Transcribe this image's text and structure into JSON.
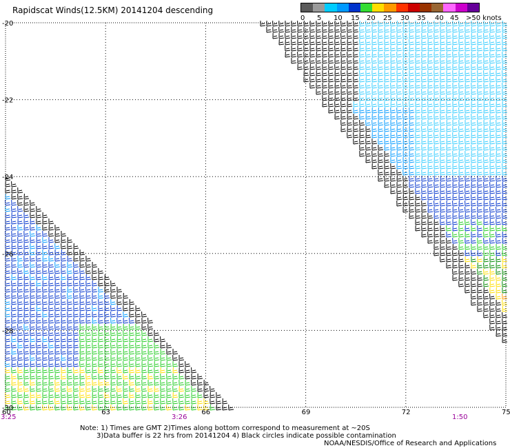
{
  "title": "Rapidscat Winds(12.5KM) 20141204 descending",
  "legend": {
    "labels": [
      "0",
      "5",
      "10",
      "15",
      "20",
      "25",
      "30",
      "35",
      "40",
      "45",
      ">50 knots"
    ],
    "colors": [
      "#5a5a5a",
      "#9a9a9a",
      "#00ccff",
      "#0099ff",
      "#0033cc",
      "#33dd33",
      "#ffdd00",
      "#ff9900",
      "#ff3300",
      "#cc0000",
      "#993300",
      "#996633",
      "#ff66ff",
      "#cc00cc",
      "#660099"
    ]
  },
  "axes": {
    "lon_ticks": [
      "60",
      "63",
      "66",
      "69",
      "72",
      "75"
    ],
    "lat_ticks": [
      "-20",
      "-22",
      "-24",
      "-26",
      "-28",
      "-30"
    ]
  },
  "times": [
    "3:25",
    "3:26",
    "1:50"
  ],
  "notes": {
    "line1": "Note: 1) Times are GMT 2)Times along bottom correspond to measurement at ~20S",
    "line2": "3)Data buffer is 22 hrs from 20141204 4) Black circles indicate possible contamination"
  },
  "credit": "NOAA/NESDIS/Office of Research and Applications",
  "colors": {
    "time_label": "#990099",
    "grid": "#000000"
  }
}
